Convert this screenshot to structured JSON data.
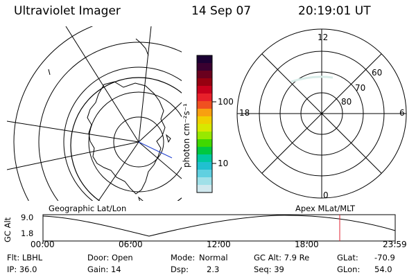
{
  "header": {
    "instrument": "Ultraviolet Imager",
    "date": "14 Sep 07",
    "time": "20:19:01 UT"
  },
  "maps": {
    "geographic_label": "Geographic Lat/Lon",
    "apex_label": "Apex MLat/MLT"
  },
  "polar_plot": {
    "mlt_labels": {
      "top": "12",
      "left": "18",
      "right": "6",
      "bottom": "0"
    },
    "lat_labels": [
      "60",
      "70",
      "80"
    ]
  },
  "colorbar": {
    "unit_label": "photon cm⁻²s⁻¹",
    "tick_labels": [
      "100",
      "10"
    ],
    "colors": [
      "#1b0033",
      "#3a0030",
      "#6a001e",
      "#960010",
      "#c8001c",
      "#e8202a",
      "#f05020",
      "#f8a010",
      "#f0d000",
      "#d8e800",
      "#98e800",
      "#40d800",
      "#00c840",
      "#00c8a0",
      "#20c0d0",
      "#60d0e0",
      "#a0e0e8",
      "#d0e8ee"
    ]
  },
  "altitude_plot": {
    "axis_label": "GC Alt",
    "y_ticks": [
      "9.0",
      "1.8"
    ],
    "x_ticks": [
      "00:00",
      "06:00",
      "12:00",
      "18:00",
      "23:59"
    ],
    "marker_color": "#e02030"
  },
  "status": {
    "filter": "Flt: LBHL",
    "door": "Door: Open",
    "mode_label": "Mode:",
    "mode_value": "Normal",
    "gc_alt": "GC Alt: 7.9 Re",
    "glat_label": "GLat:",
    "glat_value": "-70.9",
    "ip": "IP: 36.0",
    "gain": "Gain: 14",
    "dsp_label": "Dsp:",
    "dsp_value": "2.3",
    "seq": "Seq: 39",
    "glon_label": "GLon:",
    "glon_value": "54.0"
  }
}
